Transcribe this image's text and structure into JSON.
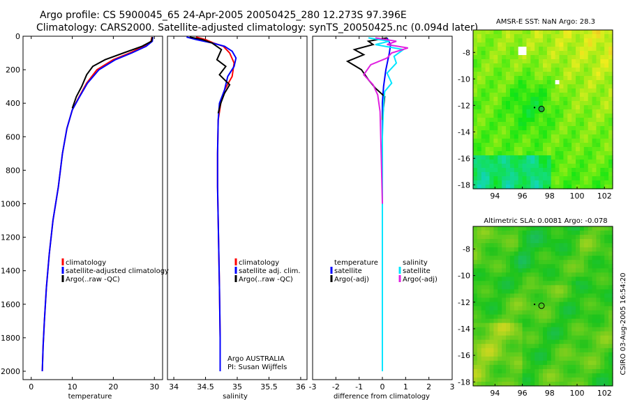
{
  "header": {
    "line1": "Argo profile: CS 5900045_65 24-Apr-2005 20050425_280 12.273S 97.396E",
    "line2": "Climatology: CARS2000. Satellite-adjusted climatology: synTS_20050425.nc (0.094d later)"
  },
  "side_label": "CSIRO 03-Aug-2005 16:54:20",
  "colors": {
    "climatology": "#ff0000",
    "satellite": "#0000ff",
    "argo": "#000000",
    "sal_satellite": "#00e5ff",
    "sal_argo": "#e020e0"
  },
  "chart_data": [
    {
      "id": "temperature",
      "type": "line",
      "xlabel": "temperature",
      "ylabel": "",
      "xlim": [
        -2,
        32
      ],
      "ylim": [
        2050,
        0
      ],
      "xticks": [
        0,
        10,
        20,
        30
      ],
      "yticks": [
        0,
        200,
        400,
        600,
        800,
        1000,
        1200,
        1400,
        1600,
        1800,
        2000
      ],
      "legend": [
        "climatology",
        "satellite-adjusted climatology",
        "Argo(..raw -QC)"
      ],
      "series": [
        {
          "name": "climatology",
          "color": "#ff0000",
          "x": [
            29.4,
            29.2,
            27.5,
            24,
            20,
            16,
            13.5,
            11.7,
            10,
            8.7,
            7.6,
            6.6,
            5.3,
            4.4,
            3.7,
            3.2,
            2.9,
            2.7
          ],
          "y": [
            5,
            30,
            60,
            100,
            140,
            200,
            280,
            360,
            440,
            550,
            700,
            900,
            1100,
            1300,
            1500,
            1700,
            1850,
            2000
          ]
        },
        {
          "name": "satellite-adjusted climatology",
          "color": "#0000ff",
          "x": [
            29.6,
            29.5,
            28,
            24.5,
            20.5,
            16.5,
            13.7,
            11.8,
            10,
            8.7,
            7.6,
            6.6,
            5.3,
            4.4,
            3.7,
            3.2,
            2.9,
            2.7
          ],
          "y": [
            5,
            30,
            60,
            100,
            140,
            200,
            280,
            360,
            440,
            550,
            700,
            900,
            1100,
            1300,
            1500,
            1700,
            1850,
            2000
          ]
        },
        {
          "name": "Argo(..raw -QC)",
          "color": "#000000",
          "x": [
            29.5,
            29.3,
            27,
            22.5,
            18,
            15,
            13.5,
            12.3,
            11,
            10
          ],
          "y": [
            5,
            30,
            60,
            100,
            140,
            180,
            230,
            300,
            360,
            430
          ]
        }
      ]
    },
    {
      "id": "salinity",
      "type": "line",
      "xlabel": "salinity",
      "ylabel": "",
      "xlim": [
        33.9,
        36.1
      ],
      "ylim": [
        2050,
        0
      ],
      "xticks": [
        34,
        34.5,
        35,
        35.5,
        36
      ],
      "xticklabels": [
        "34",
        "34.5",
        "35",
        "35.5",
        "36"
      ],
      "legend": [
        "climatology",
        "satellite adj. clim.",
        "Argo(..raw -QC)"
      ],
      "annotations": [
        "Argo AUSTRALIA",
        "PI: Susan Wijffels"
      ],
      "series": [
        {
          "name": "climatology",
          "color": "#ff0000",
          "x": [
            34.35,
            34.5,
            34.62,
            34.78,
            34.88,
            34.95,
            34.92,
            34.8,
            34.74,
            34.7,
            34.69,
            34.69,
            34.7,
            34.71,
            34.72,
            34.73,
            34.73
          ],
          "y": [
            5,
            20,
            40,
            60,
            100,
            160,
            240,
            320,
            400,
            500,
            700,
            900,
            1100,
            1300,
            1500,
            1800,
            2000
          ]
        },
        {
          "name": "satellite adj. clim.",
          "color": "#0000ff",
          "x": [
            34.2,
            34.35,
            34.6,
            34.8,
            34.92,
            34.98,
            34.95,
            34.85,
            34.8,
            34.72,
            34.7,
            34.69,
            34.69,
            34.7,
            34.71,
            34.72,
            34.73,
            34.73
          ],
          "y": [
            5,
            20,
            40,
            60,
            90,
            130,
            180,
            240,
            320,
            400,
            500,
            700,
            900,
            1100,
            1300,
            1500,
            1800,
            2000
          ]
        },
        {
          "name": "Argo(..raw -QC)",
          "color": "#000000",
          "x": [
            34.25,
            34.45,
            34.6,
            34.75,
            34.68,
            34.82,
            34.72,
            34.88,
            34.8,
            34.74,
            34.7
          ],
          "y": [
            5,
            20,
            40,
            80,
            140,
            180,
            230,
            290,
            340,
            400,
            460
          ]
        }
      ]
    },
    {
      "id": "difference",
      "type": "line",
      "xlabel": "difference from climatology",
      "ylabel": "",
      "xlim": [
        -3,
        3
      ],
      "ylim": [
        2050,
        0
      ],
      "xticks": [
        -3,
        -2,
        -1,
        0,
        1,
        2,
        3
      ],
      "legend_left": [
        "temperature",
        "satellite",
        "Argo(-adj)"
      ],
      "legend_right": [
        "salinity",
        "satellite",
        "Argo(-adj)"
      ],
      "series": [
        {
          "name": "temperature satellite",
          "color": "#0000ff",
          "x": [
            0.2,
            0.35,
            0.3,
            0.15,
            0.05,
            0,
            0,
            0,
            0,
            0
          ],
          "y": [
            10,
            50,
            100,
            200,
            300,
            400,
            800,
            1200,
            1600,
            2000
          ]
        },
        {
          "name": "temperature Argo(-adj)",
          "color": "#000000",
          "x": [
            0.2,
            -0.6,
            -0.4,
            -1.2,
            -0.8,
            -1.5,
            -0.9,
            -0.6,
            -0.3,
            0.1,
            0.05,
            0
          ],
          "y": [
            10,
            30,
            50,
            80,
            110,
            150,
            200,
            260,
            310,
            360,
            420,
            500
          ]
        },
        {
          "name": "salinity satellite",
          "color": "#00e5ff",
          "x": [
            -0.6,
            0.3,
            -0.3,
            0.9,
            0.5,
            0.6,
            0.2,
            0.4,
            0.1,
            0.05,
            0,
            0,
            0,
            0
          ],
          "y": [
            10,
            30,
            50,
            80,
            120,
            160,
            220,
            280,
            330,
            400,
            600,
            1000,
            1500,
            2000
          ]
        },
        {
          "name": "salinity Argo(-adj)",
          "color": "#e020e0",
          "x": [
            -0.3,
            0.6,
            0.2,
            1.1,
            0.4,
            0.2,
            -0.5,
            -0.8,
            -0.4,
            -0.2,
            -0.1,
            -0.05,
            0
          ],
          "y": [
            10,
            30,
            50,
            70,
            100,
            130,
            170,
            230,
            290,
            350,
            450,
            700,
            1000
          ]
        }
      ]
    },
    {
      "id": "sst_map",
      "type": "heatmap",
      "title": "AMSR-E SST: NaN Argo: 28.3",
      "xlim": [
        92.4,
        102.6
      ],
      "ylim": [
        -18.3,
        -6.3
      ],
      "xticks": [
        94,
        96,
        98,
        100,
        102
      ],
      "yticks": [
        -8,
        -10,
        -12,
        -14,
        -16,
        -18
      ],
      "argo_position": {
        "lon": 97.4,
        "lat": -12.27
      }
    },
    {
      "id": "sla_map",
      "type": "heatmap",
      "title": "Altimetric SLA: 0.0081 Argo: -0.078",
      "xlim": [
        92.4,
        102.6
      ],
      "ylim": [
        -18.3,
        -6.3
      ],
      "xticks": [
        94,
        96,
        98,
        100,
        102
      ],
      "yticks": [
        -8,
        -10,
        -12,
        -14,
        -16,
        -18
      ],
      "argo_position": {
        "lon": 97.4,
        "lat": -12.27
      }
    }
  ]
}
